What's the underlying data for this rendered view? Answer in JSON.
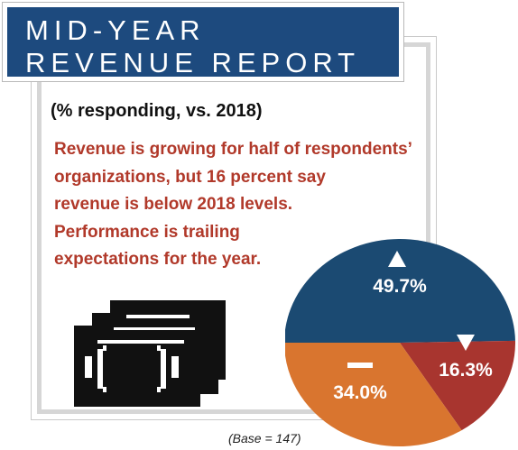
{
  "header": {
    "title_line1": "MID-YEAR",
    "title_line2": "REVENUE REPORT",
    "subtitle": "(% responding, vs. 2018)"
  },
  "description": {
    "lines": [
      "Revenue is growing for half of respondents’",
      "organizations, but 16 percent say",
      "revenue is below 2018 levels.",
      "Performance is trailing",
      "expectations for the year."
    ]
  },
  "footnote": "(Base = 147)",
  "colors": {
    "header_bg": "#1d4a7e",
    "text_accent": "#b1392a",
    "slice_up": "#1b4a72",
    "slice_down": "#a8352f",
    "slice_same": "#d9752f"
  },
  "chart_data": {
    "type": "pie",
    "slices": [
      {
        "label": "49.7%",
        "value": 49.7,
        "icon": "up-triangle-icon",
        "color": "#1b4a72"
      },
      {
        "label": "16.3%",
        "value": 16.3,
        "icon": "down-triangle-icon",
        "color": "#a8352f"
      },
      {
        "label": "34.0%",
        "value": 34.0,
        "icon": "dash-icon",
        "color": "#d9752f"
      }
    ]
  }
}
